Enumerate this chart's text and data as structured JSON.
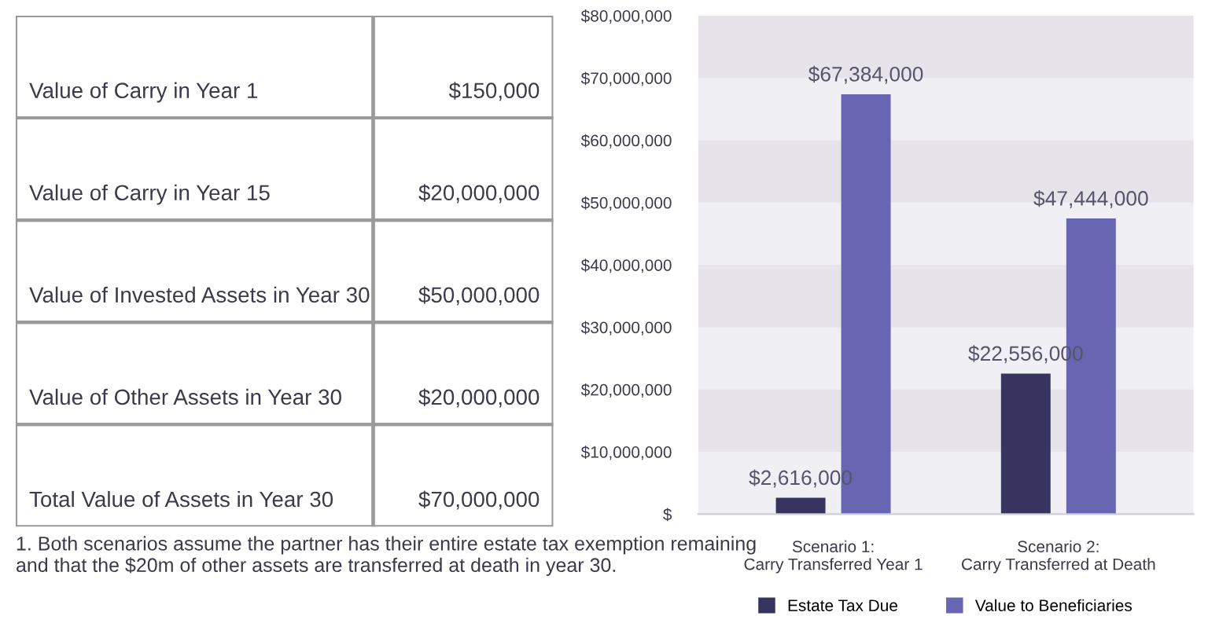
{
  "chart_data": [
    {
      "type": "other",
      "categories": [
        "Value of Carry in Year 1",
        "Value of Carry in Year 15",
        "Value of Invested Assets in Year 30",
        "Value of Other Assets in Year 30",
        "Total Value of Assets in Year 30"
      ],
      "value_labels": [
        "$150,000",
        "$20,000,000",
        "$50,000,000",
        "$20,000,000",
        "$70,000,000"
      ],
      "annotations": [
        "1. Both scenarios assume the partner has their entire estate tax exemption remaining and that the $20m of other assets are transferred at death in year 30."
      ]
    },
    {
      "type": "bar",
      "categories": [
        "Scenario 1:\nCarry Transferred Year 1",
        "Scenario 2:\nCarry Transferred at Death"
      ],
      "series": [
        {
          "name": "Estate Tax Due",
          "color": "#37345f",
          "values": [
            2616000,
            22556000
          ],
          "value_labels": [
            "$2,616,000",
            "$22,556,000"
          ]
        },
        {
          "name": "Value to Beneficiaries",
          "color": "#6866b2",
          "values": [
            67384000,
            47444000
          ],
          "value_labels": [
            "$67,384,000",
            "$47,444,000"
          ]
        }
      ],
      "ylim": [
        0,
        80000000
      ],
      "yticks": [
        {
          "value": 0,
          "label": "$"
        },
        {
          "value": 10000000,
          "label": "$10,000,000"
        },
        {
          "value": 20000000,
          "label": "$20,000,000"
        },
        {
          "value": 30000000,
          "label": "$30,000,000"
        },
        {
          "value": 40000000,
          "label": "$40,000,000"
        },
        {
          "value": 50000000,
          "label": "$50,000,000"
        },
        {
          "value": 60000000,
          "label": "$60,000,000"
        },
        {
          "value": 70000000,
          "label": "$70,000,000"
        },
        {
          "value": 80000000,
          "label": "$80,000,000"
        }
      ],
      "bands": [
        {
          "axis": "y",
          "from": 10000000,
          "to": 20000000,
          "color": "#e6e4ea"
        },
        {
          "axis": "y",
          "from": 30000000,
          "to": 40000000,
          "color": "#e6e4ea"
        },
        {
          "axis": "y",
          "from": 50000000,
          "to": 60000000,
          "color": "#e6e4ea"
        },
        {
          "axis": "y",
          "from": 70000000,
          "to": 80000000,
          "color": "#e6e4ea"
        }
      ],
      "grid": false,
      "legend": "bottom"
    }
  ]
}
